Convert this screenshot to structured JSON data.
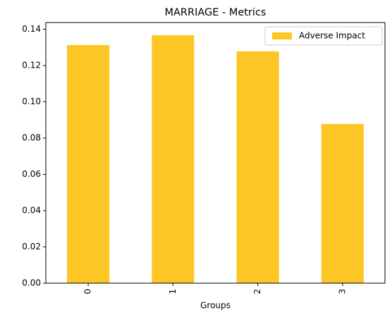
{
  "chart_data": {
    "type": "bar",
    "title": "MARRIAGE - Metrics",
    "x_label": "Groups",
    "categories": [
      "0",
      "1",
      "2",
      "3"
    ],
    "series": [
      {
        "name": "Adverse Impact",
        "color": "#fcc624",
        "values": [
          0.1313,
          0.1367,
          0.1278,
          0.0878
        ]
      }
    ],
    "ylim": [
      0,
      0.1437
    ],
    "yticks": [
      {
        "value": 0,
        "label": "0.00"
      },
      {
        "value": 0.02,
        "label": "0.02"
      },
      {
        "value": 0.04,
        "label": "0.04"
      },
      {
        "value": 0.06,
        "label": "0.06"
      },
      {
        "value": 0.08,
        "label": "0.08"
      },
      {
        "value": 0.1,
        "label": "0.10"
      },
      {
        "value": 0.12,
        "label": "0.12"
      },
      {
        "value": 0.14,
        "label": "0.14"
      }
    ],
    "legend_position": "upper right"
  }
}
